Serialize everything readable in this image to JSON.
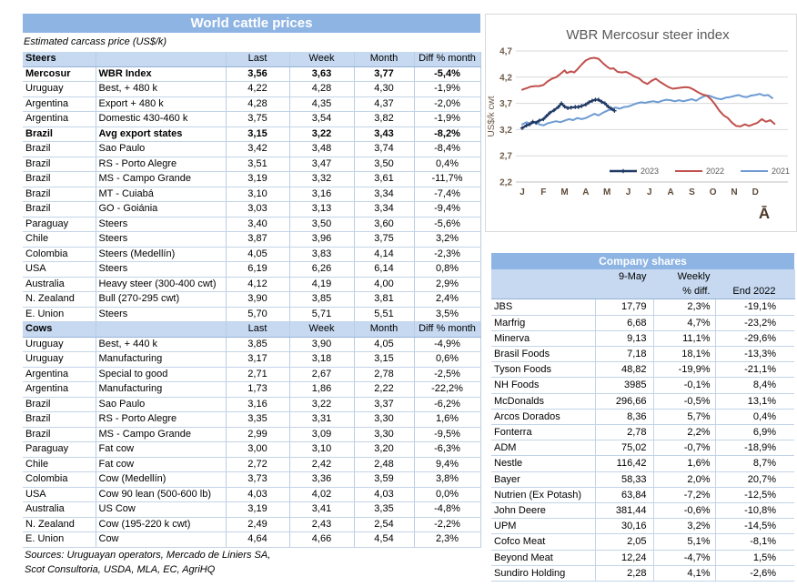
{
  "left_table": {
    "title": "World cattle prices",
    "subtitle": "Estimated carcass price (US$/k)",
    "columns": [
      "Last",
      "Week",
      "Month",
      "Diff % month"
    ],
    "sections": [
      {
        "label": "Steers",
        "rows": [
          {
            "country": "Mercosur",
            "item": "WBR Index",
            "last": "3,56",
            "week": "3,63",
            "month": "3,77",
            "diff": "-5,4%",
            "bold": true
          },
          {
            "country": "Uruguay",
            "item": "Best, + 480 k",
            "last": "4,22",
            "week": "4,28",
            "month": "4,30",
            "diff": "-1,9%"
          },
          {
            "country": "Argentina",
            "item": "Export + 480 k",
            "last": "4,28",
            "week": "4,35",
            "month": "4,37",
            "diff": "-2,0%"
          },
          {
            "country": "Argentina",
            "item": "Domestic 430-460 k",
            "last": "3,75",
            "week": "3,54",
            "month": "3,82",
            "diff": "-1,9%"
          },
          {
            "country": "Brazil",
            "item": "Avg export states",
            "last": "3,15",
            "week": "3,22",
            "month": "3,43",
            "diff": "-8,2%",
            "bold": true
          },
          {
            "country": "Brazil",
            "item": "Sao Paulo",
            "last": "3,42",
            "week": "3,48",
            "month": "3,74",
            "diff": "-8,4%"
          },
          {
            "country": "Brazil",
            "item": "RS - Porto Alegre",
            "last": "3,51",
            "week": "3,47",
            "month": "3,50",
            "diff": "0,4%"
          },
          {
            "country": "Brazil",
            "item": "MS - Campo Grande",
            "last": "3,19",
            "week": "3,32",
            "month": "3,61",
            "diff": "-11,7%"
          },
          {
            "country": "Brazil",
            "item": "MT - Cuiabá",
            "last": "3,10",
            "week": "3,16",
            "month": "3,34",
            "diff": "-7,4%"
          },
          {
            "country": "Brazil",
            "item": "GO - Goiánia",
            "last": "3,03",
            "week": "3,13",
            "month": "3,34",
            "diff": "-9,4%"
          },
          {
            "country": "Paraguay",
            "item": "Steers",
            "last": "3,40",
            "week": "3,50",
            "month": "3,60",
            "diff": "-5,6%"
          },
          {
            "country": "Chile",
            "item": "Steers",
            "last": "3,87",
            "week": "3,96",
            "month": "3,75",
            "diff": "3,2%"
          },
          {
            "country": "Colombia",
            "item": "Steers (Medellín)",
            "last": "4,05",
            "week": "3,83",
            "month": "4,14",
            "diff": "-2,3%"
          },
          {
            "country": "USA",
            "item": "Steers",
            "last": "6,19",
            "week": "6,26",
            "month": "6,14",
            "diff": "0,8%"
          },
          {
            "country": "Australia",
            "item": "Heavy steer (300-400 cwt)",
            "last": "4,12",
            "week": "4,19",
            "month": "4,00",
            "diff": "2,9%"
          },
          {
            "country": "N. Zealand",
            "item": "Bull (270-295 cwt)",
            "last": "3,90",
            "week": "3,85",
            "month": "3,81",
            "diff": "2,4%"
          },
          {
            "country": "E. Union",
            "item": "Steers",
            "last": "5,70",
            "week": "5,71",
            "month": "5,51",
            "diff": "3,5%"
          }
        ]
      },
      {
        "label": "Cows",
        "rows": [
          {
            "country": "Uruguay",
            "item": "Best, + 440 k",
            "last": "3,85",
            "week": "3,90",
            "month": "4,05",
            "diff": "-4,9%"
          },
          {
            "country": "Uruguay",
            "item": "Manufacturing",
            "last": "3,17",
            "week": "3,18",
            "month": "3,15",
            "diff": "0,6%"
          },
          {
            "country": "Argentina",
            "item": "Special to good",
            "last": "2,71",
            "week": "2,67",
            "month": "2,78",
            "diff": "-2,5%"
          },
          {
            "country": "Argentina",
            "item": "Manufacturing",
            "last": "1,73",
            "week": "1,86",
            "month": "2,22",
            "diff": "-22,2%"
          },
          {
            "country": "Brazil",
            "item": "Sao Paulo",
            "last": "3,16",
            "week": "3,22",
            "month": "3,37",
            "diff": "-6,2%"
          },
          {
            "country": "Brazil",
            "item": "RS - Porto Alegre",
            "last": "3,35",
            "week": "3,31",
            "month": "3,30",
            "diff": "1,6%"
          },
          {
            "country": "Brazil",
            "item": "MS - Campo Grande",
            "last": "2,99",
            "week": "3,09",
            "month": "3,30",
            "diff": "-9,5%"
          },
          {
            "country": "Paraguay",
            "item": "Fat cow",
            "last": "3,00",
            "week": "3,10",
            "month": "3,20",
            "diff": "-6,3%"
          },
          {
            "country": "Chile",
            "item": "Fat cow",
            "last": "2,72",
            "week": "2,42",
            "month": "2,48",
            "diff": "9,4%"
          },
          {
            "country": "Colombia",
            "item": "Cow (Medellín)",
            "last": "3,73",
            "week": "3,36",
            "month": "3,59",
            "diff": "3,8%"
          },
          {
            "country": "USA",
            "item": "Cow 90 lean (500-600 lb)",
            "last": "4,03",
            "week": "4,02",
            "month": "4,03",
            "diff": "0,0%"
          },
          {
            "country": "Australia",
            "item": "US Cow",
            "last": "3,19",
            "week": "3,41",
            "month": "3,35",
            "diff": "-4,8%"
          },
          {
            "country": "N. Zealand",
            "item": "Cow (195-220 k cwt)",
            "last": "2,49",
            "week": "2,43",
            "month": "2,54",
            "diff": "-2,2%"
          },
          {
            "country": "E. Union",
            "item": "Cow",
            "last": "4,64",
            "week": "4,66",
            "month": "4,54",
            "diff": "2,3%"
          }
        ]
      }
    ],
    "sources_line1": "Sources: Uruguayan operators, Mercado de Liniers SA,",
    "sources_line2": "Scot Consultoria, USDA, MLA, EC, AgriHQ"
  },
  "chart_data": {
    "type": "line",
    "title": "WBR Mercosur steer index",
    "ylabel": "US$/k cwt",
    "ylim": [
      2.2,
      4.7
    ],
    "ytick_values": [
      4.7,
      4.2,
      3.7,
      3.2,
      2.7,
      2.2
    ],
    "ytick_labels": [
      "4,7",
      "4,2",
      "3,7",
      "3,2",
      "2,7",
      "2,2"
    ],
    "x_labels": [
      "J",
      "F",
      "M",
      "A",
      "M",
      "J",
      "J",
      "A",
      "S",
      "O",
      "N",
      "D"
    ],
    "grid": true,
    "legend_position": "bottom-right",
    "logo_glyph": "Ā",
    "series": [
      {
        "name": "2023",
        "color": "#1F3864",
        "marker": "plus",
        "points": [
          [
            0,
            3.23
          ],
          [
            0.2,
            3.28
          ],
          [
            0.35,
            3.3
          ],
          [
            0.5,
            3.35
          ],
          [
            0.65,
            3.33
          ],
          [
            0.8,
            3.37
          ],
          [
            1.0,
            3.4
          ],
          [
            1.15,
            3.46
          ],
          [
            1.3,
            3.52
          ],
          [
            1.5,
            3.57
          ],
          [
            1.7,
            3.63
          ],
          [
            1.85,
            3.7
          ],
          [
            2.0,
            3.64
          ],
          [
            2.15,
            3.61
          ],
          [
            2.3,
            3.62
          ],
          [
            2.5,
            3.63
          ],
          [
            2.65,
            3.63
          ],
          [
            2.8,
            3.65
          ],
          [
            3.0,
            3.68
          ],
          [
            3.15,
            3.72
          ],
          [
            3.3,
            3.75
          ],
          [
            3.45,
            3.77
          ],
          [
            3.6,
            3.77
          ],
          [
            3.75,
            3.73
          ],
          [
            3.9,
            3.7
          ],
          [
            4.05,
            3.64
          ],
          [
            4.2,
            3.6
          ],
          [
            4.35,
            3.56
          ]
        ]
      },
      {
        "name": "2022",
        "color": "#C0504D",
        "marker": "none",
        "points": [
          [
            0,
            3.96
          ],
          [
            0.2,
            3.99
          ],
          [
            0.4,
            4.02
          ],
          [
            0.6,
            4.03
          ],
          [
            0.8,
            4.03
          ],
          [
            1.0,
            4.05
          ],
          [
            1.2,
            4.12
          ],
          [
            1.4,
            4.17
          ],
          [
            1.6,
            4.2
          ],
          [
            1.8,
            4.26
          ],
          [
            2.0,
            4.33
          ],
          [
            2.1,
            4.28
          ],
          [
            2.3,
            4.31
          ],
          [
            2.45,
            4.29
          ],
          [
            2.6,
            4.35
          ],
          [
            2.8,
            4.44
          ],
          [
            3.0,
            4.52
          ],
          [
            3.2,
            4.56
          ],
          [
            3.4,
            4.57
          ],
          [
            3.6,
            4.55
          ],
          [
            3.8,
            4.47
          ],
          [
            4.0,
            4.4
          ],
          [
            4.15,
            4.36
          ],
          [
            4.3,
            4.37
          ],
          [
            4.5,
            4.3
          ],
          [
            4.7,
            4.29
          ],
          [
            4.9,
            4.3
          ],
          [
            5.1,
            4.26
          ],
          [
            5.3,
            4.21
          ],
          [
            5.5,
            4.18
          ],
          [
            5.7,
            4.11
          ],
          [
            5.9,
            4.07
          ],
          [
            6.1,
            4.13
          ],
          [
            6.3,
            4.17
          ],
          [
            6.5,
            4.11
          ],
          [
            6.7,
            4.06
          ],
          [
            6.9,
            4.01
          ],
          [
            7.1,
            3.98
          ],
          [
            7.3,
            3.99
          ],
          [
            7.5,
            4.0
          ],
          [
            7.7,
            4.01
          ],
          [
            7.9,
            4.0
          ],
          [
            8.1,
            3.96
          ],
          [
            8.3,
            3.91
          ],
          [
            8.5,
            3.87
          ],
          [
            8.7,
            3.85
          ],
          [
            8.9,
            3.78
          ],
          [
            9.1,
            3.68
          ],
          [
            9.3,
            3.56
          ],
          [
            9.5,
            3.47
          ],
          [
            9.7,
            3.42
          ],
          [
            9.9,
            3.33
          ],
          [
            10.1,
            3.27
          ],
          [
            10.3,
            3.26
          ],
          [
            10.5,
            3.3
          ],
          [
            10.7,
            3.27
          ],
          [
            10.9,
            3.3
          ],
          [
            11.1,
            3.33
          ],
          [
            11.3,
            3.4
          ],
          [
            11.5,
            3.35
          ],
          [
            11.7,
            3.38
          ],
          [
            11.9,
            3.31
          ]
        ]
      },
      {
        "name": "2021",
        "color": "#6D9BD3",
        "marker": "none",
        "points": [
          [
            0,
            3.3
          ],
          [
            0.2,
            3.34
          ],
          [
            0.4,
            3.31
          ],
          [
            0.6,
            3.34
          ],
          [
            0.8,
            3.3
          ],
          [
            1.0,
            3.28
          ],
          [
            1.2,
            3.32
          ],
          [
            1.4,
            3.34
          ],
          [
            1.6,
            3.36
          ],
          [
            1.8,
            3.34
          ],
          [
            2.0,
            3.37
          ],
          [
            2.2,
            3.4
          ],
          [
            2.4,
            3.38
          ],
          [
            2.6,
            3.42
          ],
          [
            2.8,
            3.4
          ],
          [
            3.0,
            3.42
          ],
          [
            3.2,
            3.46
          ],
          [
            3.4,
            3.5
          ],
          [
            3.6,
            3.47
          ],
          [
            3.8,
            3.52
          ],
          [
            4.0,
            3.56
          ],
          [
            4.2,
            3.59
          ],
          [
            4.4,
            3.62
          ],
          [
            4.6,
            3.6
          ],
          [
            4.8,
            3.63
          ],
          [
            5.0,
            3.64
          ],
          [
            5.2,
            3.67
          ],
          [
            5.4,
            3.7
          ],
          [
            5.6,
            3.72
          ],
          [
            5.8,
            3.71
          ],
          [
            6.0,
            3.73
          ],
          [
            6.2,
            3.74
          ],
          [
            6.4,
            3.72
          ],
          [
            6.6,
            3.75
          ],
          [
            6.8,
            3.77
          ],
          [
            7.0,
            3.76
          ],
          [
            7.2,
            3.74
          ],
          [
            7.4,
            3.76
          ],
          [
            7.6,
            3.74
          ],
          [
            7.8,
            3.76
          ],
          [
            8.0,
            3.78
          ],
          [
            8.2,
            3.75
          ],
          [
            8.4,
            3.8
          ],
          [
            8.6,
            3.84
          ],
          [
            8.8,
            3.85
          ],
          [
            9.0,
            3.82
          ],
          [
            9.2,
            3.79
          ],
          [
            9.4,
            3.78
          ],
          [
            9.6,
            3.81
          ],
          [
            9.8,
            3.82
          ],
          [
            10.0,
            3.84
          ],
          [
            10.2,
            3.86
          ],
          [
            10.4,
            3.83
          ],
          [
            10.6,
            3.82
          ],
          [
            10.8,
            3.85
          ],
          [
            11.0,
            3.86
          ],
          [
            11.2,
            3.88
          ],
          [
            11.4,
            3.85
          ],
          [
            11.6,
            3.86
          ],
          [
            11.8,
            3.8
          ]
        ]
      }
    ]
  },
  "company_shares": {
    "title": "Company shares",
    "header": {
      "date": "9-May",
      "weekly_line1": "Weekly",
      "weekly_line2": "% diff.",
      "end": "End 2022"
    },
    "rows": [
      {
        "name": "JBS",
        "price": "17,79",
        "weekly": "2,3%",
        "end": "-19,1%"
      },
      {
        "name": "Marfrig",
        "price": "6,68",
        "weekly": "4,7%",
        "end": "-23,2%"
      },
      {
        "name": "Minerva",
        "price": "9,13",
        "weekly": "11,1%",
        "end": "-29,6%"
      },
      {
        "name": "Brasil Foods",
        "price": "7,18",
        "weekly": "18,1%",
        "end": "-13,3%"
      },
      {
        "name": "Tyson Foods",
        "price": "48,82",
        "weekly": "-19,9%",
        "end": "-21,1%"
      },
      {
        "name": "NH Foods",
        "price": "3985",
        "weekly": "-0,1%",
        "end": "8,4%"
      },
      {
        "name": "McDonalds",
        "price": "296,66",
        "weekly": "-0,5%",
        "end": "13,1%"
      },
      {
        "name": "Arcos Dorados",
        "price": "8,36",
        "weekly": "5,7%",
        "end": "0,4%"
      },
      {
        "name": "Fonterra",
        "price": "2,78",
        "weekly": "2,2%",
        "end": "6,9%"
      },
      {
        "name": "ADM",
        "price": "75,02",
        "weekly": "-0,7%",
        "end": "-18,9%"
      },
      {
        "name": "Nestle",
        "price": "116,42",
        "weekly": "1,6%",
        "end": "8,7%"
      },
      {
        "name": "Bayer",
        "price": "58,33",
        "weekly": "2,0%",
        "end": "20,7%"
      },
      {
        "name": "Nutrien (Ex Potash)",
        "price": "63,84",
        "weekly": "-7,2%",
        "end": "-12,5%"
      },
      {
        "name": "John Deere",
        "price": "381,44",
        "weekly": "-0,6%",
        "end": "-10,8%"
      },
      {
        "name": "UPM",
        "price": "30,16",
        "weekly": "3,2%",
        "end": "-14,5%"
      },
      {
        "name": "Cofco Meat",
        "price": "2,05",
        "weekly": "5,1%",
        "end": "-8,1%"
      },
      {
        "name": "Beyond Meat",
        "price": "12,24",
        "weekly": "-4,7%",
        "end": "1,5%"
      },
      {
        "name": "Sundiro Holding",
        "price": "2,28",
        "weekly": "4,1%",
        "end": "-2,6%"
      }
    ]
  },
  "colors": {
    "title_bar": "#8EB4E3",
    "section_bg": "#C6D9F1",
    "grid": "#D9D9D9",
    "axis": "#BFBFBF",
    "tick_text": "#6E5B49",
    "month_text": "#5F4B38",
    "chart_title_text": "#595959",
    "legend_text": "#595959",
    "logo": "#4B3928"
  }
}
